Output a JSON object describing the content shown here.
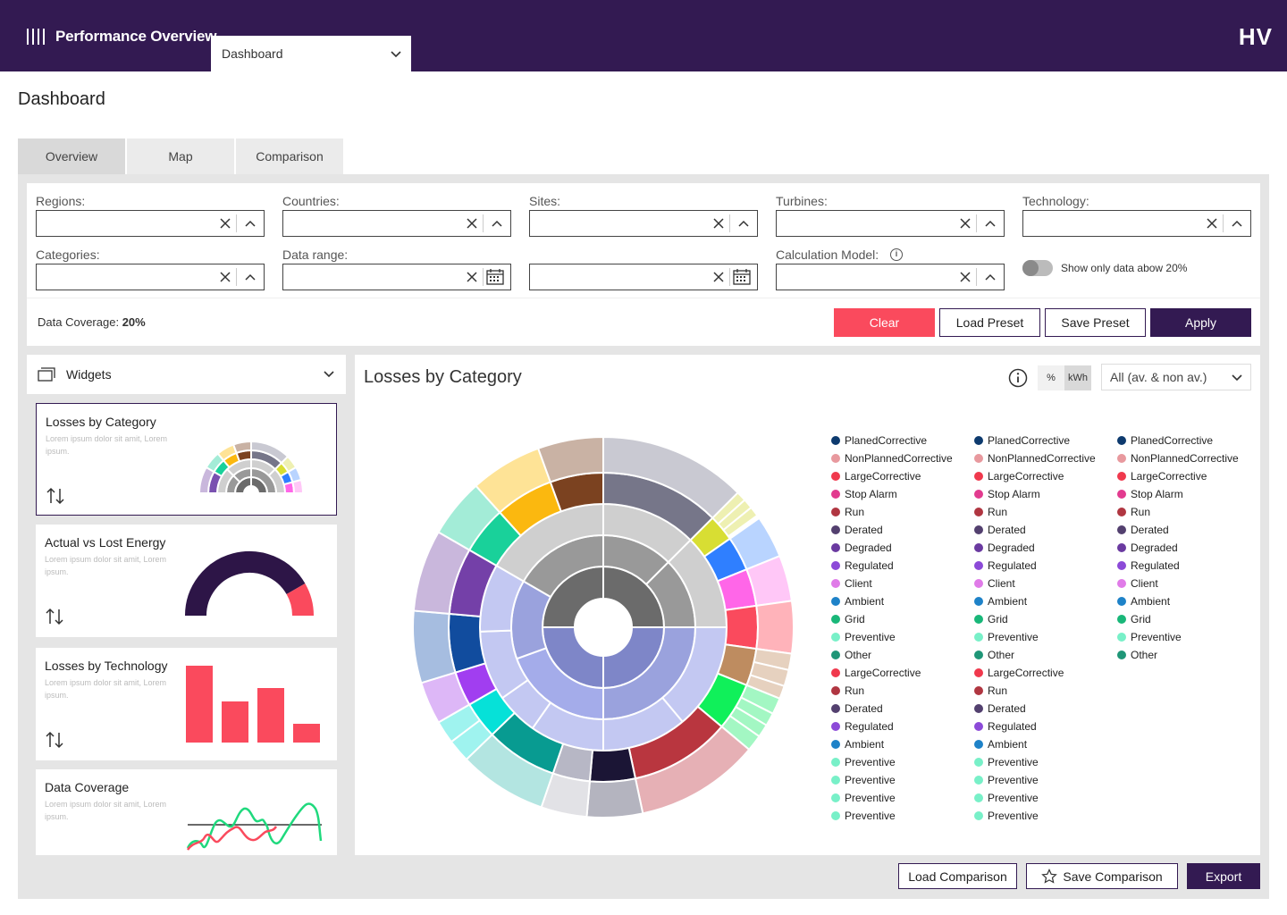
{
  "header": {
    "app_title": "Performance Overview",
    "nav_select": "Dashboard",
    "brand": "HV"
  },
  "page_title": "Dashboard",
  "tabs": [
    {
      "label": "Overview",
      "active": true
    },
    {
      "label": "Map",
      "active": false
    },
    {
      "label": "Comparison",
      "active": false
    }
  ],
  "filters": {
    "regions_label": "Regions:",
    "countries_label": "Countries:",
    "sites_label": "Sites:",
    "turbines_label": "Turbines:",
    "technology_label": "Technology:",
    "categories_label": "Categories:",
    "data_range_label": "Data range:",
    "calc_model_label": "Calculation Model:",
    "toggle_label": "Show only data abow 20%",
    "toggle_on": false,
    "coverage_label": "Data Coverage:",
    "coverage_value": "20%"
  },
  "actions": {
    "clear": "Clear",
    "load_preset": "Load Preset",
    "save_preset": "Save Preset",
    "apply": "Apply"
  },
  "widgets": {
    "header": "Widgets",
    "items": [
      {
        "title": "Losses by Category",
        "desc": "Lorem ipsum dolor sit amit, Lorem ipsum.",
        "icon": "sunburst-thumbnail"
      },
      {
        "title": "Actual vs Lost Energy",
        "desc": "Lorem ipsum dolor sit amit, Lorem ipsum.",
        "icon": "gauge-thumbnail"
      },
      {
        "title": "Losses by Technology",
        "desc": "Lorem ipsum dolor sit amit, Lorem ipsum.",
        "icon": "bar-thumbnail"
      },
      {
        "title": "Data Coverage",
        "desc": "Lorem ipsum dolor sit amit, Lorem ipsum.",
        "icon": "line-thumbnail"
      }
    ]
  },
  "chart": {
    "title": "Losses by Category",
    "unit_percent": "%",
    "unit_kwh": "kWh",
    "unit_selected": "kWh",
    "filter_value": "All (av. & non av.)"
  },
  "legend": {
    "col1": [
      {
        "label": "PlanedCorrective",
        "color": "#0d3a6e"
      },
      {
        "label": "NonPlannedCorrective",
        "color": "#e8999e"
      },
      {
        "label": "LargeCorrective",
        "color": "#f0394d"
      },
      {
        "label": "Stop Alarm",
        "color": "#e23b8f"
      },
      {
        "label": "Run",
        "color": "#b03641"
      },
      {
        "label": "Derated",
        "color": "#53406f"
      },
      {
        "label": "Degraded",
        "color": "#6a3aa0"
      },
      {
        "label": "Regulated",
        "color": "#8c4ad8"
      },
      {
        "label": "Client",
        "color": "#e07be8"
      },
      {
        "label": "Ambient",
        "color": "#1e82c8"
      },
      {
        "label": "Grid",
        "color": "#19b779"
      },
      {
        "label": "Preventive",
        "color": "#78f0c8"
      },
      {
        "label": "Other",
        "color": "#1f9677"
      },
      {
        "label": "LargeCorrective",
        "color": "#f0394d"
      },
      {
        "label": "Run",
        "color": "#b03641"
      },
      {
        "label": "Derated",
        "color": "#53406f"
      },
      {
        "label": "Regulated",
        "color": "#8c4ad8"
      },
      {
        "label": "Ambient",
        "color": "#1e82c8"
      },
      {
        "label": "Preventive",
        "color": "#78f0c8"
      },
      {
        "label": "Preventive",
        "color": "#78f0c8"
      },
      {
        "label": "Preventive",
        "color": "#78f0c8"
      },
      {
        "label": "Preventive",
        "color": "#78f0c8"
      }
    ],
    "col2": [
      {
        "label": "PlanedCorrective",
        "color": "#0d3a6e"
      },
      {
        "label": "NonPlannedCorrective",
        "color": "#e8999e"
      },
      {
        "label": "LargeCorrective",
        "color": "#f0394d"
      },
      {
        "label": "Stop Alarm",
        "color": "#e23b8f"
      },
      {
        "label": "Run",
        "color": "#b03641"
      },
      {
        "label": "Derated",
        "color": "#53406f"
      },
      {
        "label": "Degraded",
        "color": "#6a3aa0"
      },
      {
        "label": "Regulated",
        "color": "#8c4ad8"
      },
      {
        "label": "Client",
        "color": "#e07be8"
      },
      {
        "label": "Ambient",
        "color": "#1e82c8"
      },
      {
        "label": "Grid",
        "color": "#19b779"
      },
      {
        "label": "Preventive",
        "color": "#78f0c8"
      },
      {
        "label": "Other",
        "color": "#1f9677"
      },
      {
        "label": "LargeCorrective",
        "color": "#f0394d"
      },
      {
        "label": "Run",
        "color": "#b03641"
      },
      {
        "label": "Derated",
        "color": "#53406f"
      },
      {
        "label": "Regulated",
        "color": "#8c4ad8"
      },
      {
        "label": "Ambient",
        "color": "#1e82c8"
      },
      {
        "label": "Preventive",
        "color": "#78f0c8"
      },
      {
        "label": "Preventive",
        "color": "#78f0c8"
      },
      {
        "label": "Preventive",
        "color": "#78f0c8"
      },
      {
        "label": "Preventive",
        "color": "#78f0c8"
      }
    ],
    "col3": [
      {
        "label": "PlanedCorrective",
        "color": "#0d3a6e"
      },
      {
        "label": "NonPlannedCorrective",
        "color": "#e8999e"
      },
      {
        "label": "LargeCorrective",
        "color": "#f0394d"
      },
      {
        "label": "Stop Alarm",
        "color": "#e23b8f"
      },
      {
        "label": "Run",
        "color": "#b03641"
      },
      {
        "label": "Derated",
        "color": "#53406f"
      },
      {
        "label": "Degraded",
        "color": "#6a3aa0"
      },
      {
        "label": "Regulated",
        "color": "#8c4ad8"
      },
      {
        "label": "Client",
        "color": "#e07be8"
      },
      {
        "label": "Ambient",
        "color": "#1e82c8"
      },
      {
        "label": "Grid",
        "color": "#19b779"
      },
      {
        "label": "Preventive",
        "color": "#78f0c8"
      },
      {
        "label": "Other",
        "color": "#1f9677"
      }
    ]
  },
  "footer": {
    "load_comparison": "Load Comparison",
    "save_comparison": "Save Comparison",
    "export": "Export"
  },
  "colors": {
    "brand": "#331a52",
    "danger": "#fa4a5d",
    "panel": "#e5e5e5"
  }
}
